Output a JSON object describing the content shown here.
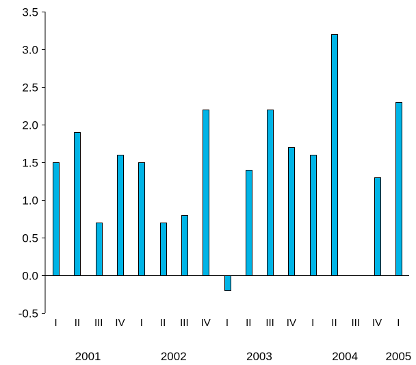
{
  "chart_data": {
    "type": "bar",
    "categories": [
      "I",
      "II",
      "III",
      "IV",
      "I",
      "II",
      "III",
      "IV",
      "I",
      "II",
      "III",
      "IV",
      "I",
      "II",
      "III",
      "IV",
      "I"
    ],
    "years": [
      {
        "label": "2001",
        "start": 0,
        "end": 3
      },
      {
        "label": "2002",
        "start": 4,
        "end": 7
      },
      {
        "label": "2003",
        "start": 8,
        "end": 11
      },
      {
        "label": "2004",
        "start": 12,
        "end": 15
      },
      {
        "label": "2005",
        "start": 16,
        "end": 16
      }
    ],
    "values": [
      1.5,
      1.9,
      0.7,
      1.6,
      1.5,
      0.7,
      0.8,
      2.2,
      -0.2,
      1.4,
      2.2,
      1.7,
      1.6,
      3.2,
      null,
      1.3,
      2.3
    ],
    "ylim": [
      -0.5,
      3.5
    ],
    "yticks": [
      "-0.5",
      "0.0",
      "0.5",
      "1.0",
      "1.5",
      "2.0",
      "2.5",
      "3.0",
      "3.5"
    ],
    "title": "",
    "xlabel": "",
    "ylabel": "",
    "bar_color": "#00b4e6",
    "bar_stroke": "#000000",
    "grid": false,
    "legend": "none"
  }
}
